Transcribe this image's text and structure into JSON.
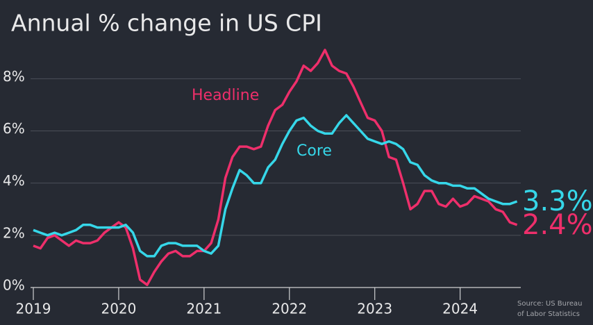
{
  "chart_data": {
    "type": "line",
    "title": "Annual % change in US CPI",
    "source": [
      "Source: US Bureau",
      "of Labor Statistics"
    ],
    "x": [
      2019,
      2019.083,
      2019.167,
      2019.25,
      2019.333,
      2019.417,
      2019.5,
      2019.583,
      2019.667,
      2019.75,
      2019.833,
      2019.917,
      2020,
      2020.083,
      2020.167,
      2020.25,
      2020.333,
      2020.417,
      2020.5,
      2020.583,
      2020.667,
      2020.75,
      2020.833,
      2020.917,
      2021,
      2021.083,
      2021.167,
      2021.25,
      2021.333,
      2021.417,
      2021.5,
      2021.583,
      2021.667,
      2021.75,
      2021.833,
      2021.917,
      2022,
      2022.083,
      2022.167,
      2022.25,
      2022.333,
      2022.417,
      2022.5,
      2022.583,
      2022.667,
      2022.75,
      2022.833,
      2022.917,
      2023,
      2023.083,
      2023.167,
      2023.25,
      2023.333,
      2023.417,
      2023.5,
      2023.583,
      2023.667,
      2023.75,
      2023.833,
      2023.917,
      2024,
      2024.083,
      2024.167,
      2024.25,
      2024.333,
      2024.417,
      2024.5,
      2024.583,
      2024.667
    ],
    "series": [
      {
        "name": "Headline",
        "color": "#ee2f6b",
        "values": [
          1.6,
          1.5,
          1.9,
          2.0,
          1.8,
          1.6,
          1.8,
          1.7,
          1.7,
          1.8,
          2.1,
          2.3,
          2.5,
          2.3,
          1.5,
          0.3,
          0.1,
          0.6,
          1.0,
          1.3,
          1.4,
          1.2,
          1.2,
          1.4,
          1.4,
          1.7,
          2.6,
          4.2,
          5.0,
          5.4,
          5.4,
          5.3,
          5.4,
          6.2,
          6.8,
          7.0,
          7.5,
          7.9,
          8.5,
          8.3,
          8.6,
          9.1,
          8.5,
          8.3,
          8.2,
          7.7,
          7.1,
          6.5,
          6.4,
          6.0,
          5.0,
          4.9,
          4.0,
          3.0,
          3.2,
          3.7,
          3.7,
          3.2,
          3.1,
          3.4,
          3.1,
          3.2,
          3.5,
          3.4,
          3.3,
          3.0,
          2.9,
          2.5,
          2.4
        ],
        "value_labels": [
          null,
          null,
          null,
          null,
          null,
          null,
          null,
          null,
          null,
          null,
          null,
          null,
          null,
          null,
          null,
          null,
          null,
          null,
          null,
          null,
          null,
          null,
          null,
          null,
          null,
          null,
          null,
          null,
          null,
          null,
          null,
          null,
          null,
          null,
          null,
          null,
          null,
          null,
          null,
          null,
          null,
          null,
          null,
          null,
          null,
          null,
          null,
          null,
          null,
          null,
          null,
          null,
          null,
          null,
          null,
          null,
          null,
          null,
          null,
          null,
          null,
          null,
          null,
          null,
          null,
          null,
          null,
          null,
          "2.4%"
        ]
      },
      {
        "name": "Core",
        "color": "#36d7e9",
        "values": [
          2.2,
          2.1,
          2.0,
          2.1,
          2.0,
          2.1,
          2.2,
          2.4,
          2.4,
          2.3,
          2.3,
          2.3,
          2.3,
          2.4,
          2.1,
          1.4,
          1.2,
          1.2,
          1.6,
          1.7,
          1.7,
          1.6,
          1.6,
          1.6,
          1.4,
          1.3,
          1.6,
          3.0,
          3.8,
          4.5,
          4.3,
          4.0,
          4.0,
          4.6,
          4.9,
          5.5,
          6.0,
          6.4,
          6.5,
          6.2,
          6.0,
          5.9,
          5.9,
          6.3,
          6.6,
          6.3,
          6.0,
          5.7,
          5.6,
          5.5,
          5.6,
          5.5,
          5.3,
          4.8,
          4.7,
          4.3,
          4.1,
          4.0,
          4.0,
          3.9,
          3.9,
          3.8,
          3.8,
          3.6,
          3.4,
          3.3,
          3.2,
          3.2,
          3.3
        ],
        "value_labels": [
          null,
          null,
          null,
          null,
          null,
          null,
          null,
          null,
          null,
          null,
          null,
          null,
          null,
          null,
          null,
          null,
          null,
          null,
          null,
          null,
          null,
          null,
          null,
          null,
          null,
          null,
          null,
          null,
          null,
          null,
          null,
          null,
          null,
          null,
          null,
          null,
          null,
          null,
          null,
          null,
          null,
          null,
          null,
          null,
          null,
          null,
          null,
          null,
          null,
          null,
          null,
          null,
          null,
          null,
          null,
          null,
          null,
          null,
          null,
          null,
          null,
          null,
          null,
          null,
          null,
          null,
          null,
          null,
          "3.3%"
        ]
      }
    ],
    "xlim": [
      2019,
      2024.67
    ],
    "xticks": [
      2019,
      2020,
      2021,
      2022,
      2023,
      2024
    ],
    "ylim": [
      0,
      9.5
    ],
    "yticks": [
      {
        "value": 0,
        "label": "0%"
      },
      {
        "value": 2,
        "label": "2%"
      },
      {
        "value": 4,
        "label": "4%"
      },
      {
        "value": 6,
        "label": "6%"
      },
      {
        "value": 8,
        "label": "8%"
      }
    ],
    "grid": true
  }
}
